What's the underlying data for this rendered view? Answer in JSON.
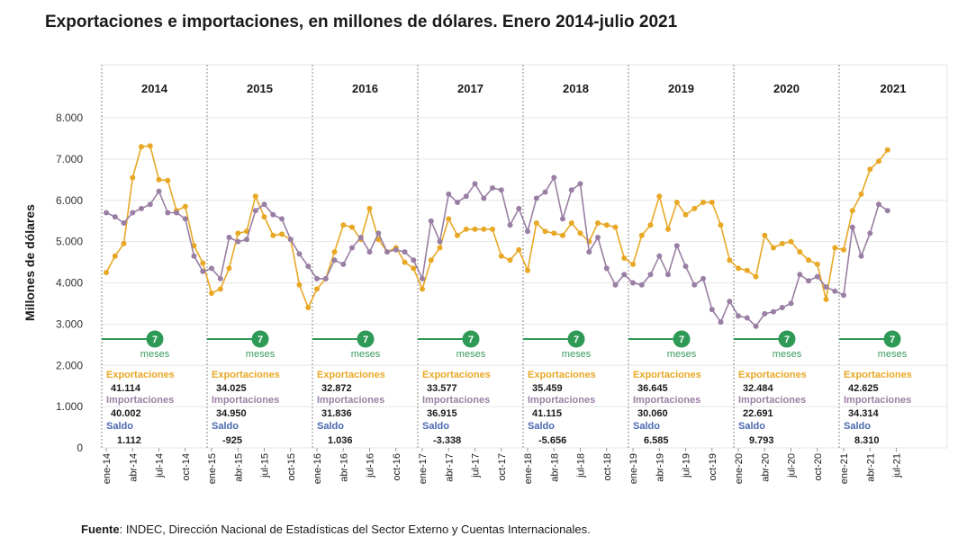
{
  "title": "Exportaciones e importaciones, en millones de dólares. Enero 2014-julio 2021",
  "source": {
    "label": "Fuente",
    "text": ": INDEC, Dirección Nacional de Estadísticas del Sector Externo y Cuentas Internacionales."
  },
  "colors": {
    "exports": "#e8a825",
    "imports": "#9a7fa4",
    "saldo": "#4a68b0",
    "badge": "#2e9a55",
    "grid": "#e6e6e6",
    "divider": "#888888"
  },
  "chart_data": {
    "type": "line",
    "ylabel": "Millones de dólares",
    "ylim": [
      0,
      8000
    ],
    "yticks": [
      {
        "value": 0,
        "label": "0"
      },
      {
        "value": 1000,
        "label": "1.000"
      },
      {
        "value": 2000,
        "label": "2.000"
      },
      {
        "value": 3000,
        "label": "3.000"
      },
      {
        "value": 4000,
        "label": "4.000"
      },
      {
        "value": 5000,
        "label": "5.000"
      },
      {
        "value": 6000,
        "label": "6.000"
      },
      {
        "value": 7000,
        "label": "7.000"
      },
      {
        "value": 8000,
        "label": "8.000"
      }
    ],
    "years": [
      "2014",
      "2015",
      "2016",
      "2017",
      "2018",
      "2019",
      "2020",
      "2021"
    ],
    "tick_labels": [
      "ene-14",
      "abr-14",
      "jul-14",
      "oct-14",
      "ene-15",
      "abr-15",
      "jul-15",
      "oct-15",
      "ene-16",
      "abr-16",
      "jul-16",
      "oct-16",
      "ene-17",
      "abr-17",
      "jul-17",
      "oct-17",
      "ene-18",
      "abr-18",
      "jul-18",
      "oct-18",
      "ene-19",
      "abr-19",
      "jul-19",
      "oct-19",
      "ene-20",
      "abr-20",
      "jul-20",
      "oct-20",
      "ene-21",
      "abr-21",
      "jul-21"
    ],
    "series": [
      {
        "name": "Exportaciones",
        "values": [
          4250,
          4650,
          4950,
          6550,
          7300,
          7320,
          6500,
          6480,
          5750,
          5850,
          4900,
          4480,
          3750,
          3850,
          4350,
          5200,
          5250,
          6100,
          5600,
          5150,
          5180,
          5050,
          3950,
          3400,
          3850,
          4100,
          4750,
          5400,
          5350,
          5050,
          5800,
          5050,
          4750,
          4850,
          4500,
          4350,
          3850,
          4550,
          4850,
          5550,
          5150,
          5300,
          5300,
          5300,
          5300,
          4650,
          4550,
          4800,
          4300,
          5450,
          5250,
          5200,
          5150,
          5450,
          5200,
          5000,
          5450,
          5400,
          5350,
          4600,
          4450,
          5150,
          5400,
          6100,
          5300,
          5950,
          5650,
          5800,
          5950,
          5950,
          5400,
          4550,
          4350,
          4300,
          4150,
          5150,
          4850,
          4950,
          5000,
          4750,
          4550,
          4450,
          3600,
          4850,
          4800,
          5750,
          6150,
          6750,
          6950,
          7220
        ],
        "color": "#e8a825"
      },
      {
        "name": "Importaciones",
        "values": [
          5700,
          5600,
          5450,
          5700,
          5800,
          5900,
          6220,
          5700,
          5700,
          5550,
          4650,
          4280,
          4350,
          4100,
          5100,
          5000,
          5050,
          5750,
          5900,
          5650,
          5550,
          5050,
          4700,
          4400,
          4100,
          4100,
          4550,
          4450,
          4850,
          5100,
          4750,
          5200,
          4750,
          4800,
          4750,
          4550,
          4100,
          5500,
          5000,
          6150,
          5950,
          6100,
          6400,
          6050,
          6300,
          6250,
          5400,
          5800,
          5250,
          6050,
          6200,
          6550,
          5550,
          6250,
          6400,
          4750,
          5100,
          4350,
          3950,
          4200,
          4000,
          3950,
          4200,
          4650,
          4200,
          4900,
          4400,
          3950,
          4100,
          3350,
          3050,
          3550,
          3200,
          3150,
          2950,
          3250,
          3300,
          3400,
          3500,
          4200,
          4050,
          4150,
          3900,
          3800,
          3700,
          5350,
          4650,
          5200,
          5900,
          5750
        ],
        "color": "#9a7fa4"
      }
    ],
    "annotations": [
      {
        "year": "2014",
        "months": "7",
        "months_label": "meses",
        "exp_label": "Exportaciones",
        "exp_value": "41.114",
        "imp_label": "Importaciones",
        "imp_value": "40.002",
        "saldo_label": "Saldo",
        "saldo_value": "1.112"
      },
      {
        "year": "2015",
        "months": "7",
        "months_label": "meses",
        "exp_label": "Exportaciones",
        "exp_value": "34.025",
        "imp_label": "Importaciones",
        "imp_value": "34.950",
        "saldo_label": "Saldo",
        "saldo_value": "-925"
      },
      {
        "year": "2016",
        "months": "7",
        "months_label": "meses",
        "exp_label": "Exportaciones",
        "exp_value": "32.872",
        "imp_label": "Importaciones",
        "imp_value": "31.836",
        "saldo_label": "Saldo",
        "saldo_value": "1.036"
      },
      {
        "year": "2017",
        "months": "7",
        "months_label": "meses",
        "exp_label": "Exportaciones",
        "exp_value": "33.577",
        "imp_label": "Importaciones",
        "imp_value": "36.915",
        "saldo_label": "Saldo",
        "saldo_value": "-3.338"
      },
      {
        "year": "2018",
        "months": "7",
        "months_label": "meses",
        "exp_label": "Exportaciones",
        "exp_value": "35.459",
        "imp_label": "Importaciones",
        "imp_value": "41.115",
        "saldo_label": "Saldo",
        "saldo_value": "-5.656"
      },
      {
        "year": "2019",
        "months": "7",
        "months_label": "meses",
        "exp_label": "Exportaciones",
        "exp_value": "36.645",
        "imp_label": "Importaciones",
        "imp_value": "30.060",
        "saldo_label": "Saldo",
        "saldo_value": "6.585"
      },
      {
        "year": "2020",
        "months": "7",
        "months_label": "meses",
        "exp_label": "Exportaciones",
        "exp_value": "32.484",
        "imp_label": "Importaciones",
        "imp_value": "22.691",
        "saldo_label": "Saldo",
        "saldo_value": "9.793"
      },
      {
        "year": "2021",
        "months": "7",
        "months_label": "meses",
        "exp_label": "Exportaciones",
        "exp_value": "42.625",
        "imp_label": "Importaciones",
        "imp_value": "34.314",
        "saldo_label": "Saldo",
        "saldo_value": "8.310"
      }
    ]
  }
}
